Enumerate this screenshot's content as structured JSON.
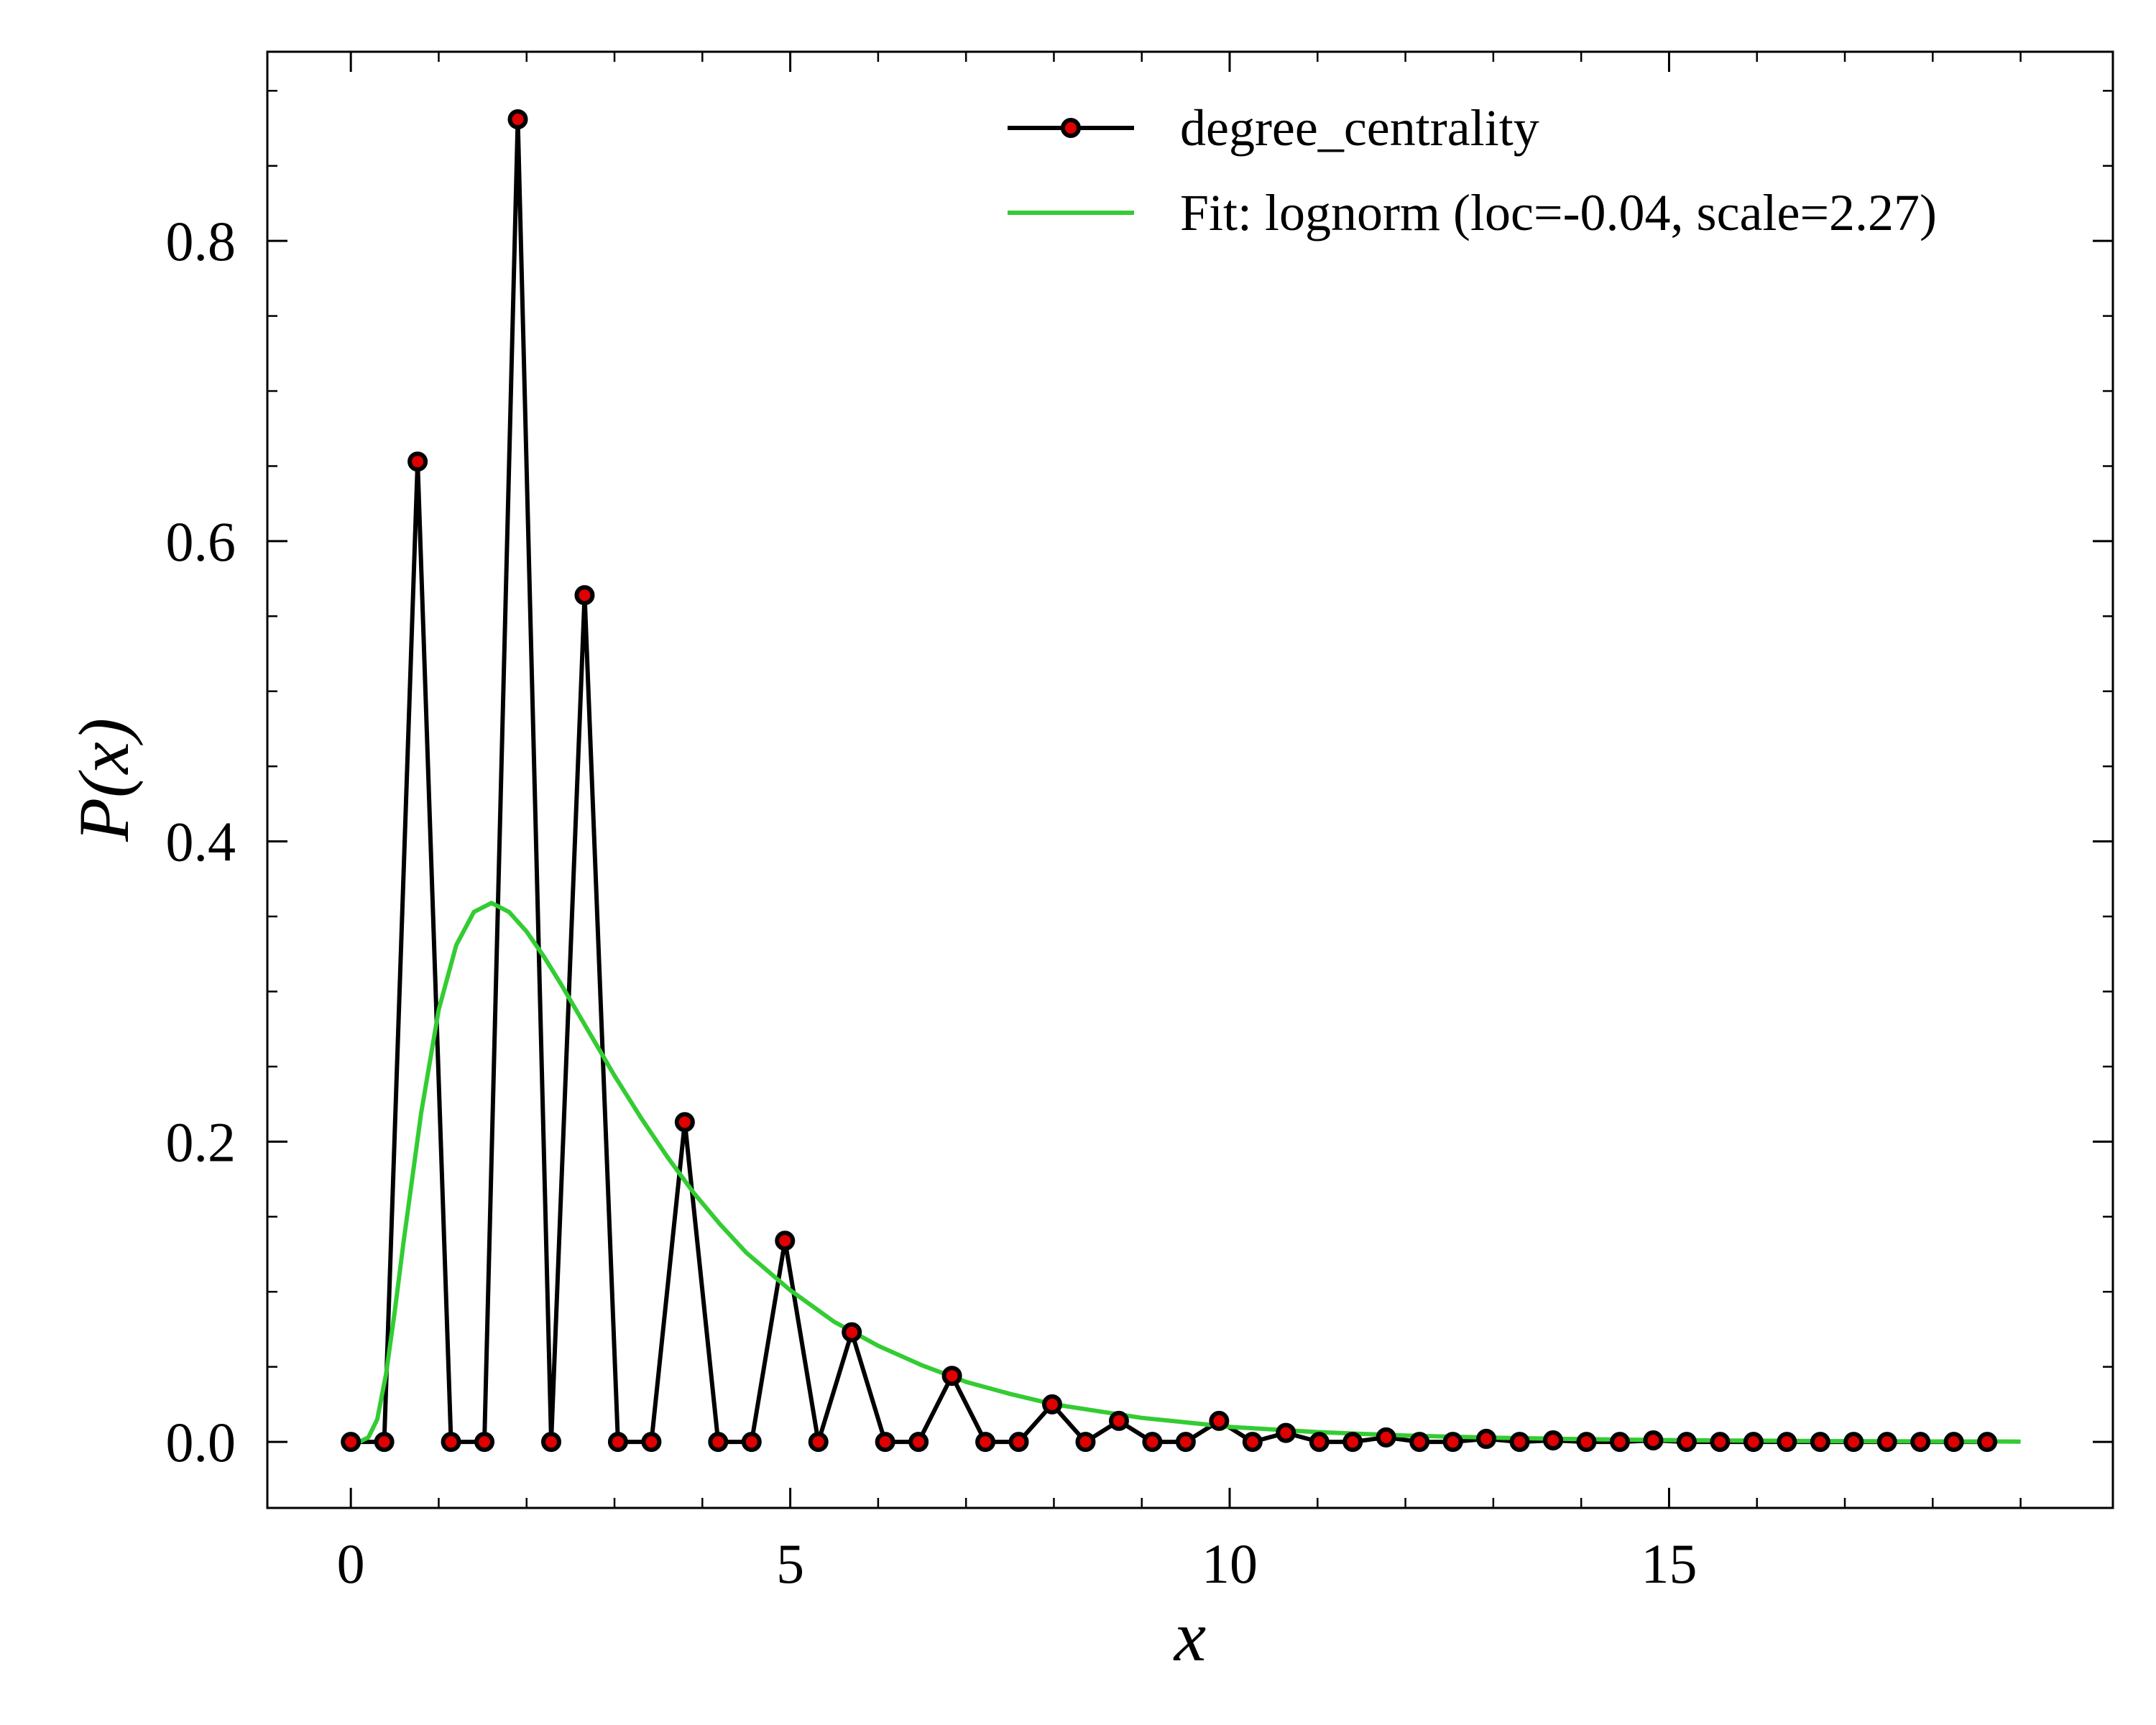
{
  "chart_data": {
    "type": "line",
    "xlabel": "x",
    "ylabel": "P(x)",
    "xlim": [
      -0.95,
      20.05
    ],
    "ylim": [
      -0.044,
      0.926
    ],
    "xticks": [
      0,
      5,
      10,
      15
    ],
    "yticks": [
      0.0,
      0.2,
      0.4,
      0.6,
      0.8
    ],
    "ytick_labels": [
      "0.0",
      "0.2",
      "0.4",
      "0.6",
      "0.8"
    ],
    "grid": false,
    "legend_position": "top-right",
    "colors": {
      "data": "#000000",
      "marker": "#e00000",
      "fit": "#33cc33"
    },
    "series": [
      {
        "name": "degree_centrality",
        "style": "line-with-markers",
        "x": [
          0,
          0.38,
          0.76,
          1.14,
          1.52,
          1.9,
          2.28,
          2.66,
          3.04,
          3.42,
          3.8,
          4.18,
          4.56,
          4.94,
          5.32,
          5.7,
          6.08,
          6.46,
          6.84,
          7.22,
          7.6,
          7.98,
          8.36,
          8.74,
          9.12,
          9.5,
          9.88,
          10.26,
          10.64,
          11.02,
          11.4,
          11.78,
          12.16,
          12.54,
          12.92,
          13.3,
          13.68,
          14.06,
          14.44,
          14.82,
          15.2,
          15.58,
          15.96,
          16.34,
          16.72,
          17.1,
          17.48,
          17.86,
          18.24,
          18.62
        ],
        "y": [
          0,
          0,
          0.653,
          0,
          0,
          0.881,
          0,
          0.564,
          0,
          0,
          0.213,
          0,
          0,
          0.134,
          0,
          0.073,
          0,
          0,
          0.044,
          0,
          0,
          0.025,
          0,
          0.014,
          0,
          0,
          0.014,
          0,
          0.006,
          0,
          0,
          0.003,
          0,
          0,
          0.002,
          0,
          0.001,
          0,
          0,
          0.001,
          0,
          0,
          0,
          0,
          0,
          0,
          0,
          0,
          0,
          0
        ]
      },
      {
        "name": "Fit: lognorm (loc=-0.04, scale=2.27)",
        "style": "line",
        "distribution": "lognorm",
        "loc": -0.04,
        "scale": 2.27,
        "x": [
          0,
          0.1,
          0.2,
          0.3,
          0.4,
          0.5,
          0.6,
          0.8,
          1.0,
          1.2,
          1.4,
          1.6,
          1.8,
          2.0,
          2.2,
          2.4,
          2.6,
          2.8,
          3.0,
          3.3,
          3.6,
          3.9,
          4.2,
          4.5,
          5.0,
          5.5,
          6.0,
          6.5,
          7.0,
          7.5,
          8.0,
          9.0,
          10.0,
          11.0,
          12.0,
          13.0,
          14.0,
          15.0,
          16.0,
          17.0,
          18.0,
          19.0
        ],
        "y": [
          0.0,
          0.0,
          0.003,
          0.015,
          0.045,
          0.087,
          0.133,
          0.219,
          0.288,
          0.331,
          0.353,
          0.359,
          0.353,
          0.34,
          0.323,
          0.304,
          0.284,
          0.264,
          0.244,
          0.216,
          0.19,
          0.166,
          0.145,
          0.126,
          0.101,
          0.08,
          0.064,
          0.051,
          0.04,
          0.032,
          0.025,
          0.016,
          0.01,
          0.0065,
          0.0042,
          0.0028,
          0.0018,
          0.0012,
          0.0008,
          0.0005,
          0.0003,
          0.0002
        ]
      }
    ]
  }
}
